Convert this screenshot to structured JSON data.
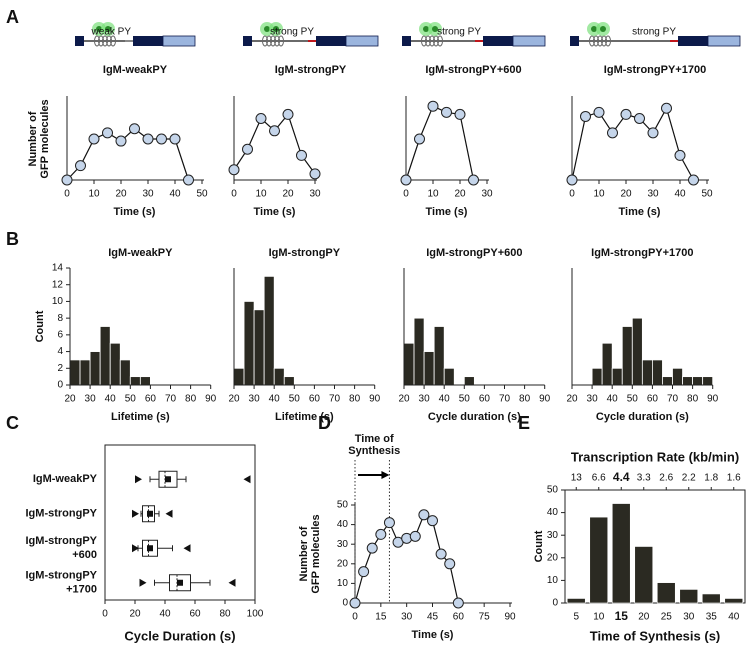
{
  "chart_data": [
    {
      "type": "line",
      "panel": "A",
      "title": "IgM-weakPY",
      "construct_label": "weak PY",
      "construct_label_color": "#8a8a8a",
      "ylabel": [
        "Number of",
        "GFP molecules"
      ],
      "xlabel": "Time (s)",
      "x": [
        0,
        5,
        10,
        15,
        20,
        25,
        30,
        35,
        40,
        45
      ],
      "values": [
        0,
        7,
        20,
        23,
        19,
        25,
        20,
        20,
        20,
        0
      ],
      "xlim": [
        0,
        50
      ],
      "xticks": [
        0,
        10,
        20,
        30,
        40,
        50
      ],
      "ylim": [
        0,
        40
      ],
      "marker_color": "#c5d5ea"
    },
    {
      "type": "line",
      "title": "IgM-strongPY",
      "construct_label": "strong PY",
      "construct_label_color": "#c0161c",
      "xlabel": "Time (s)",
      "x": [
        0,
        5,
        10,
        15,
        20,
        25,
        30
      ],
      "values": [
        5,
        15,
        30,
        24,
        32,
        12,
        3
      ],
      "xlim": [
        0,
        30
      ],
      "xticks": [
        0,
        10,
        20,
        30
      ],
      "ylim": [
        0,
        40
      ],
      "marker_color": "#c5d5ea"
    },
    {
      "type": "line",
      "title": "IgM-strongPY+600",
      "construct_label": "strong PY",
      "construct_label_color": "#c0161c",
      "xlabel": "Time (s)",
      "x": [
        0,
        5,
        10,
        15,
        20,
        25
      ],
      "values": [
        0,
        20,
        36,
        33,
        32,
        0
      ],
      "xlim": [
        0,
        30
      ],
      "xticks": [
        0,
        10,
        20,
        30
      ],
      "ylim": [
        0,
        40
      ],
      "marker_color": "#c5d5ea"
    },
    {
      "type": "line",
      "title": "IgM-strongPY+1700",
      "construct_label": "strong PY",
      "construct_label_color": "#c0161c",
      "xlabel": "Time (s)",
      "x": [
        0,
        5,
        10,
        15,
        20,
        25,
        30,
        35,
        40,
        45
      ],
      "values": [
        0,
        31,
        33,
        23,
        32,
        30,
        23,
        35,
        12,
        0
      ],
      "xlim": [
        0,
        50
      ],
      "xticks": [
        0,
        10,
        20,
        30,
        40,
        50
      ],
      "ylim": [
        0,
        40
      ],
      "marker_color": "#c5d5ea"
    },
    {
      "type": "histogram",
      "panel": "B",
      "title": "IgM-weakPY",
      "ylabel": "Count",
      "xlabel": "Lifetime (s)",
      "bins": [
        20,
        25,
        30,
        35,
        40,
        45,
        50,
        55,
        60
      ],
      "values": [
        3,
        3,
        4,
        7,
        5,
        3,
        1,
        1
      ],
      "xlim": [
        20,
        90
      ],
      "xticks": [
        20,
        30,
        40,
        50,
        60,
        70,
        80,
        90
      ],
      "ylim": [
        0,
        14
      ],
      "yticks": [
        0,
        2,
        4,
        6,
        8,
        10,
        12,
        14
      ],
      "color": "#2b2a22"
    },
    {
      "type": "histogram",
      "title": "IgM-strongPY",
      "xlabel": "Lifetime (s)",
      "bins": [
        20,
        25,
        30,
        35,
        40,
        45,
        50
      ],
      "values": [
        2,
        10,
        9,
        13,
        2,
        1
      ],
      "xlim": [
        20,
        90
      ],
      "xticks": [
        20,
        30,
        40,
        50,
        60,
        70,
        80,
        90
      ],
      "ylim": [
        0,
        14
      ],
      "color": "#2b2a22"
    },
    {
      "type": "histogram",
      "title": "IgM-strongPY+600",
      "xlabel": "Cycle duration (s)",
      "bins": [
        20,
        25,
        30,
        35,
        40,
        45,
        50,
        55
      ],
      "values": [
        5,
        8,
        4,
        7,
        2,
        0,
        1
      ],
      "xlim": [
        20,
        90
      ],
      "xticks": [
        20,
        30,
        40,
        50,
        60,
        70,
        80,
        90
      ],
      "ylim": [
        0,
        14
      ],
      "color": "#2b2a22"
    },
    {
      "type": "histogram",
      "title": "IgM-strongPY+1700",
      "xlabel": "Cycle duration (s)",
      "bins": [
        30,
        35,
        40,
        45,
        50,
        55,
        60,
        65,
        70,
        75,
        80,
        85,
        90
      ],
      "values": [
        2,
        5,
        2,
        7,
        8,
        3,
        3,
        1,
        2,
        1,
        1,
        1
      ],
      "xlim": [
        20,
        90
      ],
      "xticks": [
        20,
        30,
        40,
        50,
        60,
        70,
        80,
        90
      ],
      "ylim": [
        0,
        14
      ],
      "color": "#2b2a22"
    },
    {
      "type": "box",
      "panel": "C",
      "categories": [
        [
          "IgM-weakPY"
        ],
        [
          "IgM-strongPY"
        ],
        [
          "IgM-strongPY",
          "+600"
        ],
        [
          "IgM-strongPY",
          "+1700"
        ]
      ],
      "boxes": [
        {
          "low": 30,
          "q1": 36,
          "median": 40,
          "q3": 48,
          "high": 54,
          "mean": 42,
          "min": 22,
          "max": 95
        },
        {
          "low": 24,
          "q1": 25,
          "median": 29,
          "q3": 33,
          "high": 36,
          "mean": 30,
          "min": 20,
          "max": 43
        },
        {
          "low": 22,
          "q1": 25,
          "median": 29,
          "q3": 35,
          "high": 45,
          "mean": 30,
          "min": 20,
          "max": 55
        },
        {
          "low": 33,
          "q1": 43,
          "median": 48,
          "q3": 57,
          "high": 70,
          "mean": 50,
          "min": 25,
          "max": 85
        }
      ],
      "xlabel": "Cycle Duration (s)",
      "xlim": [
        0,
        100
      ],
      "xticks": [
        0,
        20,
        40,
        60,
        80,
        100
      ]
    },
    {
      "type": "line",
      "panel": "D",
      "annotation": [
        "Time of",
        "Synthesis"
      ],
      "ylabel": [
        "Number of",
        "GFP molecules"
      ],
      "xlabel": "Time (s)",
      "x": [
        0,
        5,
        10,
        15,
        20,
        25,
        30,
        35,
        40,
        45,
        50,
        55,
        60
      ],
      "values": [
        0,
        16,
        28,
        35,
        41,
        31,
        33,
        34,
        45,
        42,
        25,
        20,
        0
      ],
      "xlim": [
        0,
        90
      ],
      "xticks": [
        0,
        15,
        30,
        45,
        60,
        75,
        90
      ],
      "ylim": [
        0,
        50
      ],
      "yticks": [
        0,
        10,
        20,
        30,
        40,
        50
      ],
      "marker_color": "#c5d5ea"
    },
    {
      "type": "bar",
      "panel": "E",
      "title": "Transcription Rate (kb/min)",
      "top_labels": [
        13,
        6.6,
        4.4,
        3.3,
        2.6,
        2.2,
        1.8,
        1.6
      ],
      "categories": [
        5,
        10,
        15,
        20,
        25,
        30,
        35,
        40
      ],
      "highlight": 15,
      "values": [
        2,
        38,
        44,
        25,
        9,
        6,
        4,
        2
      ],
      "ylabel": "Count",
      "xlabel": "Time of Synthesis (s)",
      "ylim": [
        0,
        50
      ],
      "yticks": [
        0,
        10,
        20,
        30,
        40,
        50
      ],
      "color": "#2b2a22"
    }
  ]
}
